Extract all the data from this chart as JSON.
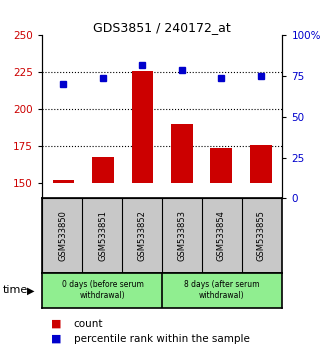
{
  "title": "GDS3851 / 240172_at",
  "samples": [
    "GSM533850",
    "GSM533851",
    "GSM533852",
    "GSM533853",
    "GSM533854",
    "GSM533855"
  ],
  "bar_values": [
    152,
    168,
    226,
    190,
    174,
    176
  ],
  "dot_values": [
    70,
    74,
    82,
    79,
    74,
    75
  ],
  "bar_color": "#cc0000",
  "dot_color": "#0000cc",
  "ylim_left": [
    140,
    250
  ],
  "ylim_right": [
    0,
    100
  ],
  "yticks_left": [
    150,
    175,
    200,
    225,
    250
  ],
  "yticks_right": [
    0,
    25,
    50,
    75,
    100
  ],
  "ytick_labels_left": [
    "150",
    "175",
    "200",
    "225",
    "250"
  ],
  "ytick_labels_right": [
    "0",
    "25",
    "50",
    "75",
    "100%"
  ],
  "hlines": [
    175,
    200,
    225
  ],
  "group1_label": "0 days (before serum\nwithdrawal)",
  "group2_label": "8 days (after serum\nwithdrawal)",
  "group1_indices": [
    0,
    1,
    2
  ],
  "group2_indices": [
    3,
    4,
    5
  ],
  "group_bg_color": "#90ee90",
  "sample_bg_color": "#c8c8c8",
  "time_label": "time",
  "legend_bar_label": "count",
  "legend_dot_label": "percentile rank within the sample",
  "bar_bottom": 150,
  "bar_width": 0.55
}
